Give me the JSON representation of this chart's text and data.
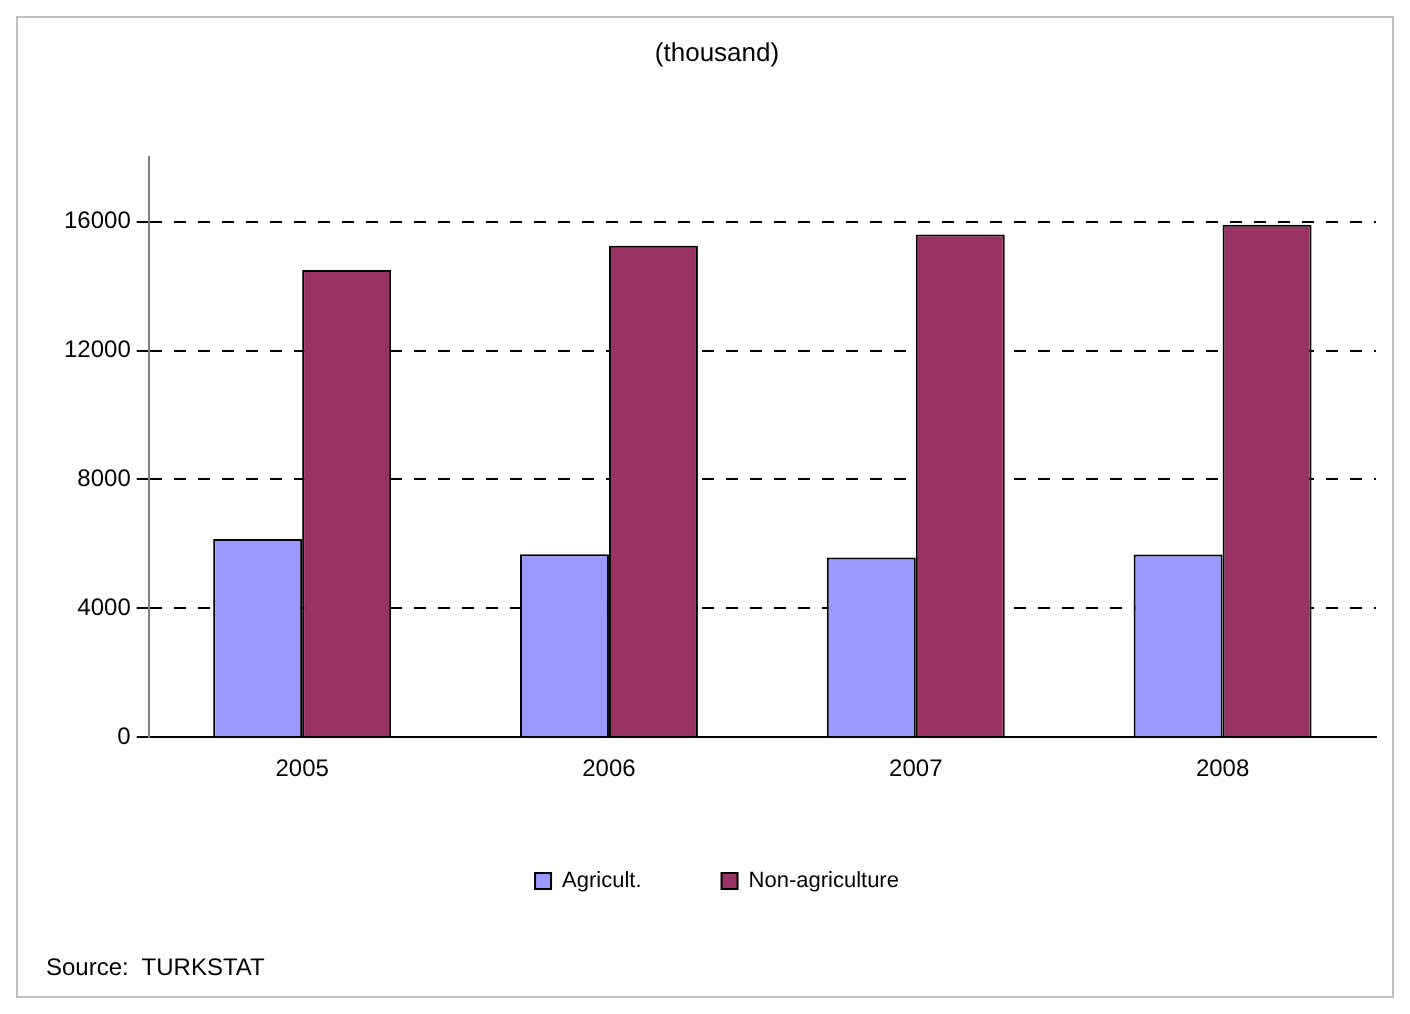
{
  "chart_data": {
    "type": "bar",
    "title": "(thousand)",
    "categories": [
      "2005",
      "2006",
      "2007",
      "2008"
    ],
    "series": [
      {
        "name": "Agricult.",
        "color": "#9999ff",
        "values": [
          6150,
          5680,
          5580,
          5670
        ]
      },
      {
        "name": "Non-agriculture",
        "color": "#993366",
        "values": [
          14500,
          15250,
          15600,
          15900
        ]
      }
    ],
    "ylim": [
      0,
      18000
    ],
    "yticks": [
      0,
      4000,
      8000,
      12000,
      16000
    ],
    "grid": "y",
    "legend": "bottom",
    "annotations": [
      "Source:  TURKSTAT"
    ]
  }
}
